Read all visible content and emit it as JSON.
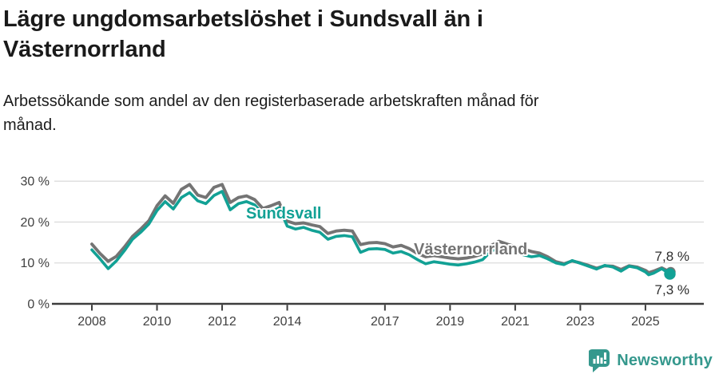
{
  "title": "Lägre ungdomsarbetslöshet i Sundsvall än i Västernorrland",
  "subtitle": "Arbetssökande som andel av den registerbaserade arbetskraften månad för månad.",
  "footer": {
    "brand": "Newsworthy",
    "brand_color": "#35988d",
    "logo_icon": "newsworthy-bar-chart-bubble-icon"
  },
  "colors": {
    "sundsvall": "#12a195",
    "vasternorrland": "#747474",
    "grid": "#dcdcdc",
    "axis": "#3d3d3d",
    "tick_text": "#404040",
    "annotation_text": "#2e2e2e"
  },
  "chart_data": {
    "type": "line",
    "title": "Lägre ungdomsarbetslöshet i Sundsvall än i Västernorrland",
    "subtitle": "Arbetssökande som andel av den registerbaserade arbetskraften månad för månad.",
    "ylabel": "",
    "xlabel": "",
    "grid": true,
    "legend_position": "inline-labels-on-lines",
    "ylim": [
      0,
      32
    ],
    "xlim": [
      2006.8,
      2026.6
    ],
    "y_ticks": {
      "values": [
        0,
        10,
        20,
        30
      ],
      "labels": [
        "0 %",
        "10 %",
        "20 %",
        "30 %"
      ]
    },
    "x_ticks": {
      "values": [
        2008,
        2010,
        2012,
        2014,
        2017,
        2019,
        2021,
        2023,
        2025
      ],
      "labels": [
        "2008",
        "2010",
        "2012",
        "2014",
        "2017",
        "2019",
        "2021",
        "2023",
        "2025"
      ]
    },
    "x": [
      2008.0,
      2008.25,
      2008.5,
      2008.75,
      2009.0,
      2009.25,
      2009.5,
      2009.75,
      2010.0,
      2010.25,
      2010.5,
      2010.75,
      2011.0,
      2011.25,
      2011.5,
      2011.75,
      2012.0,
      2012.25,
      2012.5,
      2012.75,
      2013.0,
      2013.25,
      2013.5,
      2013.75,
      2014.0,
      2014.25,
      2014.5,
      2014.75,
      2015.0,
      2015.25,
      2015.5,
      2015.75,
      2016.0,
      2016.25,
      2016.5,
      2016.75,
      2017.0,
      2017.25,
      2017.5,
      2017.75,
      2018.0,
      2018.25,
      2018.5,
      2018.75,
      2019.0,
      2019.25,
      2019.5,
      2019.75,
      2020.0,
      2020.25,
      2020.5,
      2020.75,
      2021.0,
      2021.25,
      2021.5,
      2021.75,
      2022.0,
      2022.25,
      2022.5,
      2022.75,
      2023.0,
      2023.25,
      2023.5,
      2023.75,
      2024.0,
      2024.25,
      2024.5,
      2024.75,
      2025.0,
      2025.1,
      2025.25,
      2025.5,
      2025.75
    ],
    "series": [
      {
        "name": "Västernorrland",
        "color": "#747474",
        "end_label": "7,8 %",
        "end_value": 7.8,
        "values": [
          14.6,
          12.3,
          10.4,
          11.6,
          13.9,
          16.5,
          18.3,
          20.3,
          24.0,
          26.4,
          24.6,
          28.0,
          29.2,
          26.6,
          26.0,
          28.5,
          29.2,
          24.8,
          26.0,
          26.4,
          25.5,
          23.3,
          24.0,
          24.8,
          20.2,
          19.6,
          19.8,
          19.3,
          18.9,
          17.2,
          17.8,
          18.0,
          17.8,
          14.5,
          14.9,
          15.0,
          14.7,
          13.9,
          14.3,
          13.5,
          12.3,
          11.5,
          11.8,
          11.5,
          11.2,
          11.0,
          11.2,
          11.6,
          12.2,
          14.2,
          15.3,
          14.6,
          14.0,
          13.4,
          12.8,
          12.4,
          11.5,
          10.3,
          9.8,
          10.5,
          10.0,
          9.4,
          8.7,
          9.3,
          9.2,
          8.4,
          9.3,
          9.0,
          8.2,
          7.6,
          8.0,
          8.8,
          7.8
        ]
      },
      {
        "name": "Sundsvall",
        "color": "#12a195",
        "end_label": "7,3 %",
        "end_value": 7.3,
        "values": [
          13.2,
          11.0,
          8.6,
          10.5,
          13.0,
          15.8,
          17.5,
          19.5,
          22.8,
          25.0,
          23.2,
          26.0,
          27.2,
          25.2,
          24.5,
          26.5,
          27.5,
          23.0,
          24.5,
          25.0,
          24.2,
          22.0,
          22.5,
          23.5,
          19.0,
          18.3,
          18.7,
          18.0,
          17.5,
          15.8,
          16.5,
          16.7,
          16.4,
          12.6,
          13.4,
          13.5,
          13.3,
          12.4,
          12.8,
          12.0,
          10.8,
          9.8,
          10.3,
          10.0,
          9.7,
          9.5,
          9.8,
          10.2,
          10.8,
          12.8,
          13.8,
          13.0,
          12.5,
          12.0,
          11.5,
          11.8,
          11.0,
          10.0,
          9.6,
          10.6,
          9.9,
          9.2,
          8.5,
          9.4,
          9.0,
          8.0,
          9.2,
          8.8,
          7.8,
          7.1,
          7.5,
          8.6,
          7.3
        ]
      }
    ]
  }
}
